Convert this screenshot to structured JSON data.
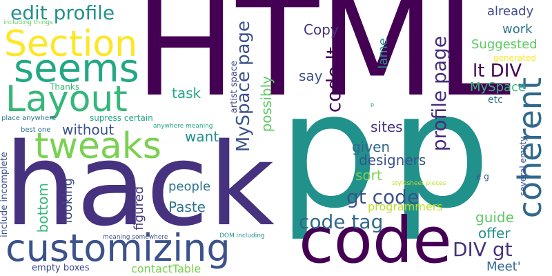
{
  "words": [
    {
      "text": "HTML",
      "color": "#440154"
    },
    {
      "text": "p",
      "color": "#21918c"
    },
    {
      "text": "p",
      "color": "#21918c"
    },
    {
      "text": "hack",
      "color": "#46327e"
    },
    {
      "text": "code",
      "color": "#440154"
    },
    {
      "text": "customizing",
      "color": "#3b528b"
    },
    {
      "text": "tweaks",
      "color": "#7ad151"
    },
    {
      "text": "Section",
      "color": "#fde725"
    },
    {
      "text": "seems",
      "color": "#22a884"
    },
    {
      "text": "Layout",
      "color": "#35b779"
    },
    {
      "text": "coherent",
      "color": "#31688e"
    },
    {
      "text": "edit profile",
      "color": "#21918c"
    },
    {
      "text": "MySpace page",
      "color": "#3b528b"
    },
    {
      "text": "code lt",
      "color": "#440154"
    },
    {
      "text": "profile page",
      "color": "#472d7b"
    },
    {
      "text": "lt DIV",
      "color": "#440154"
    },
    {
      "text": "code tag",
      "color": "#31688e"
    },
    {
      "text": "gt code",
      "color": "#3b528b"
    },
    {
      "text": "DIV gt",
      "color": "#46327e"
    },
    {
      "text": "Copy",
      "color": "#46327e"
    },
    {
      "text": "already",
      "color": "#3e4989"
    },
    {
      "text": "work",
      "color": "#2c728e"
    },
    {
      "text": "Suggested",
      "color": "#5ec962"
    },
    {
      "text": "generated",
      "color": "#fde725"
    },
    {
      "text": "MySpace",
      "color": "#35b779"
    },
    {
      "text": "etc",
      "color": "#2c728e"
    },
    {
      "text": "say",
      "color": "#3b528b"
    },
    {
      "text": "lame",
      "color": "#21918c"
    },
    {
      "text": "possibly",
      "color": "#5ec962"
    },
    {
      "text": "task",
      "color": "#22a884"
    },
    {
      "text": "Thanks",
      "color": "#35b779"
    },
    {
      "text": "artist space",
      "color": "#3e4989"
    },
    {
      "text": "without",
      "color": "#3b528b"
    },
    {
      "text": "want",
      "color": "#21918c"
    },
    {
      "text": "sites",
      "color": "#46327e"
    },
    {
      "text": "designers",
      "color": "#3b528b"
    },
    {
      "text": "given",
      "color": "#31688e"
    },
    {
      "text": "sort",
      "color": "#7ad151"
    },
    {
      "text": "programmers",
      "color": "#bddf26"
    },
    {
      "text": "guide",
      "color": "#5ec962"
    },
    {
      "text": "offer",
      "color": "#21918c"
    },
    {
      "text": "Meet'",
      "color": "#31688e"
    },
    {
      "text": "people",
      "color": "#2c728e"
    },
    {
      "text": "Paste",
      "color": "#2c728e"
    },
    {
      "text": "figured",
      "color": "#46327e"
    },
    {
      "text": "looking",
      "color": "#3e4989"
    },
    {
      "text": "bottom",
      "color": "#35b779"
    },
    {
      "text": "contactTable",
      "color": "#7ad151"
    },
    {
      "text": "empty boxes",
      "color": "#3e4989"
    },
    {
      "text": "including things",
      "color": "#5ec962"
    },
    {
      "text": "place anywhere",
      "color": "#2c728e"
    },
    {
      "text": "best one",
      "color": "#2c728e"
    },
    {
      "text": "include incomplete",
      "color": "#3b528b"
    },
    {
      "text": "supress certain",
      "color": "#22a884"
    },
    {
      "text": "anywhere meaning",
      "color": "#22a884"
    },
    {
      "text": "meaning somewhere",
      "color": "#3b528b"
    },
    {
      "text": "DOM including",
      "color": "#21918c"
    },
    {
      "text": "stylesheet pieces",
      "color": "#bddf26"
    },
    {
      "text": "several empty",
      "color": "#3b528b"
    },
    {
      "text": "e g",
      "color": "#3b528b"
    },
    {
      "text": "p",
      "color": "#21918c"
    }
  ]
}
